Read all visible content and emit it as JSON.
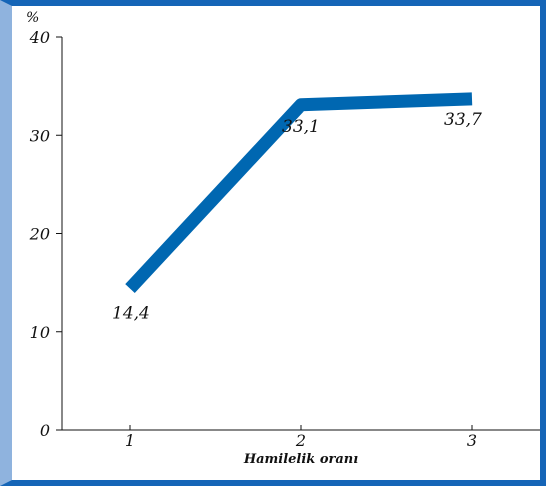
{
  "chart_data": {
    "type": "line",
    "title": "",
    "xlabel": "Hamilelik oranı",
    "ylabel": "%",
    "x": [
      "1",
      "2",
      "3"
    ],
    "ylim": [
      0,
      40
    ],
    "yticks": [
      "0",
      "10",
      "20",
      "30",
      "40"
    ],
    "series": [
      {
        "values": [
          14.4,
          33.1,
          33.7
        ]
      }
    ],
    "data_labels": [
      "14,4",
      "33,1",
      "33,7"
    ],
    "grid": false,
    "colors": {
      "line": "#0067b1",
      "frame": "#1565b7",
      "frame_left": "#8fb3de",
      "axis": "#111111"
    }
  }
}
